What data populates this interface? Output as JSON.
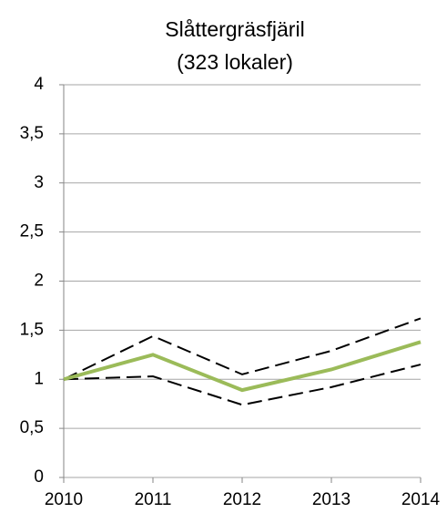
{
  "chart_data": {
    "type": "line",
    "title": "Slåttergräsfjäril",
    "subtitle": "(323 lokaler)",
    "x": [
      2010,
      2011,
      2012,
      2013,
      2014
    ],
    "xlim": [
      2010,
      2014
    ],
    "xticks": [
      2010,
      2011,
      2012,
      2013,
      2014
    ],
    "ylim": [
      0,
      4
    ],
    "yticks": [
      0,
      {
        "value": 0.5,
        "label": "0,5"
      },
      1,
      {
        "value": 1.5,
        "label": "1,5"
      },
      2,
      {
        "value": 2.5,
        "label": "2,5"
      },
      3,
      {
        "value": 3.5,
        "label": "3,5"
      },
      4
    ],
    "grid": true,
    "series": [
      {
        "color": "#000000",
        "dashed": true,
        "values": [
          1,
          1.44,
          1.05,
          1.29,
          1.62
        ]
      },
      {
        "color": "#000000",
        "dashed": true,
        "values": [
          1,
          1.03,
          0.74,
          0.92,
          1.15
        ]
      },
      {
        "color": "#9bbb59",
        "dashed": false,
        "values": [
          1,
          1.25,
          0.89,
          1.1,
          1.38
        ]
      }
    ]
  }
}
